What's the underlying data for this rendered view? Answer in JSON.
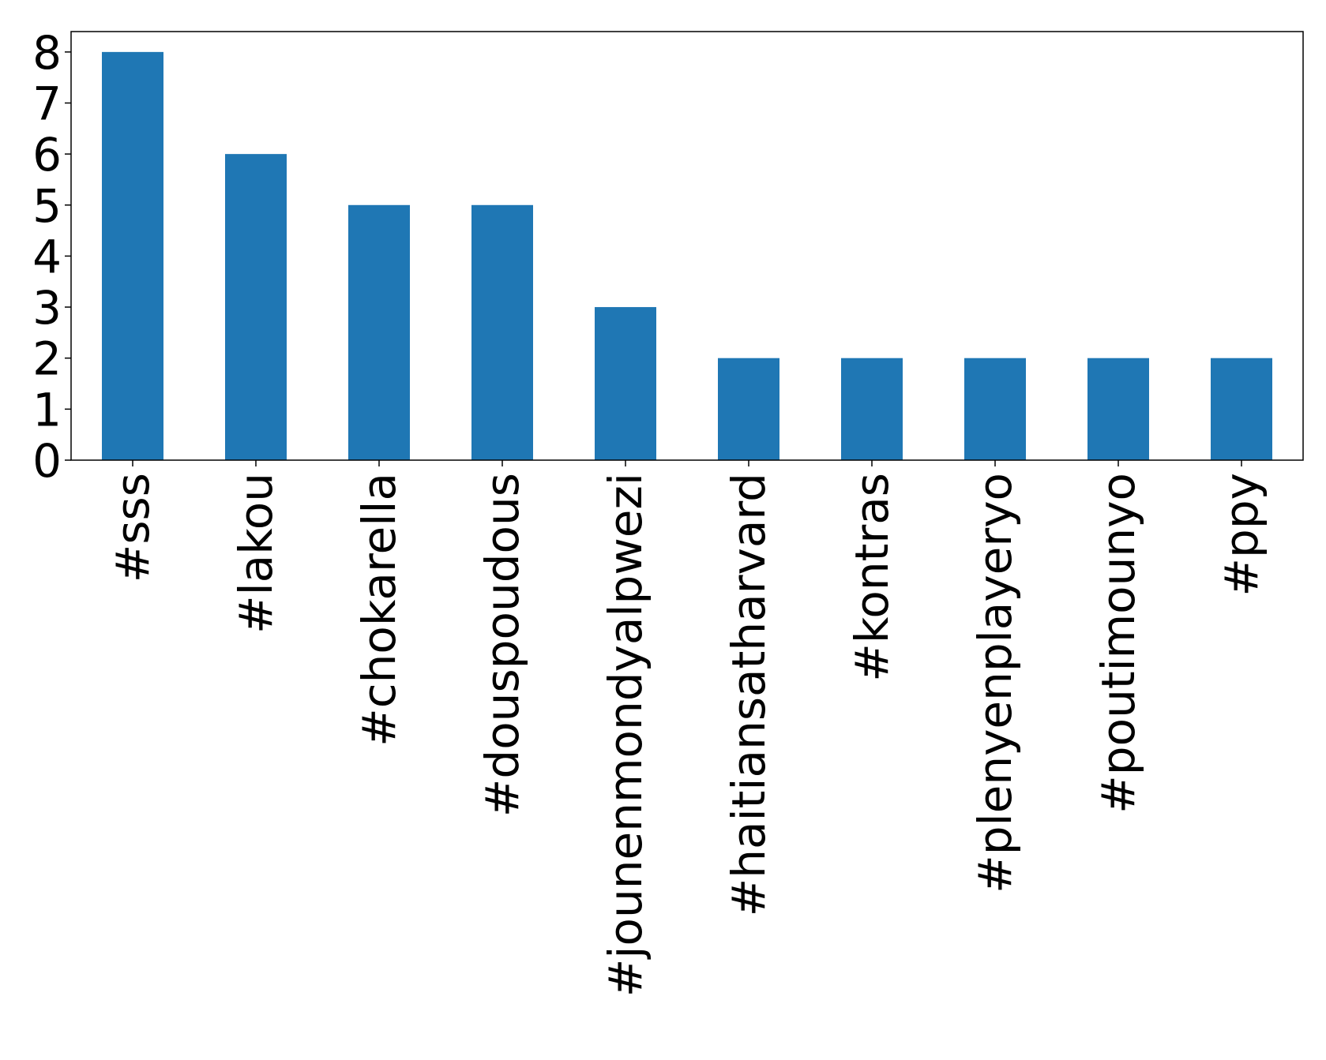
{
  "chart_data": {
    "type": "bar",
    "categories": [
      "#sss",
      "#lakou",
      "#chokarella",
      "#douspoudous",
      "#jounenmondyalpwezi",
      "#haitiansatharvard",
      "#kontras",
      "#plenyenplayeryo",
      "#poutimounyo",
      "#ppy"
    ],
    "values": [
      8,
      6,
      5,
      5,
      3,
      2,
      2,
      2,
      2,
      2
    ],
    "yticks": [
      "0",
      "1",
      "2",
      "3",
      "4",
      "5",
      "6",
      "7",
      "8"
    ],
    "ylim": [
      0,
      8.4
    ],
    "grid": false,
    "bar_color": "#1f77b4"
  }
}
